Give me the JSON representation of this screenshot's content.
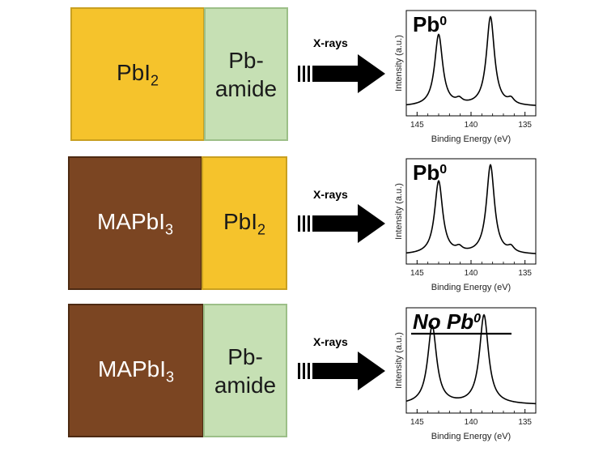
{
  "colors": {
    "pbi2_fill": "#f5c32c",
    "pbi2_border": "#c9a020",
    "amide_fill": "#c6e0b4",
    "amide_border": "#9cbf88",
    "mapbi3_fill": "#7b4522",
    "mapbi3_border": "#4d2a12"
  },
  "rows": [
    {
      "left": {
        "main": "PbI",
        "sub": "2",
        "style": "pbi2"
      },
      "right": {
        "line1": "Pb-",
        "line2": "amide",
        "style": "amide"
      },
      "arrow_label": "X-rays",
      "plot": {
        "label_main": "Pb",
        "label_sup": "0",
        "italic": false,
        "overline": false
      }
    },
    {
      "left": {
        "main": "MAPbI",
        "sub": "3",
        "style": "mapbi3"
      },
      "right": {
        "main": "PbI",
        "sub": "2",
        "style": "pbi2"
      },
      "arrow_label": "X-rays",
      "plot": {
        "label_main": "Pb",
        "label_sup": "0",
        "italic": false,
        "overline": false
      }
    },
    {
      "left": {
        "main": "MAPbI",
        "sub": "3",
        "style": "mapbi3"
      },
      "right": {
        "line1": "Pb-",
        "line2": "amide",
        "style": "amide"
      },
      "arrow_label": "X-rays",
      "plot": {
        "label_main": "No Pb",
        "label_sup": "0",
        "italic": true,
        "overline": true
      }
    }
  ],
  "chart_data": [
    {
      "type": "line",
      "xlabel": "Binding Energy (eV)",
      "ylabel": "Intensity (a.u.)",
      "xlim": [
        146,
        134
      ],
      "x_ticks": [
        "145",
        "140",
        "135"
      ],
      "peaks": [
        {
          "x": 143.0,
          "height": 0.8,
          "width": 0.45
        },
        {
          "x": 141.1,
          "height": 0.05,
          "width": 0.35
        },
        {
          "x": 138.2,
          "height": 1.0,
          "width": 0.45
        },
        {
          "x": 136.3,
          "height": 0.06,
          "width": 0.35
        }
      ],
      "baseline": 0.03
    },
    {
      "type": "line",
      "xlabel": "Binding Energy (eV)",
      "ylabel": "Intensity (a.u.)",
      "xlim": [
        146,
        134
      ],
      "x_ticks": [
        "145",
        "140",
        "135"
      ],
      "peaks": [
        {
          "x": 143.0,
          "height": 0.82,
          "width": 0.45
        },
        {
          "x": 141.1,
          "height": 0.05,
          "width": 0.35
        },
        {
          "x": 138.2,
          "height": 1.0,
          "width": 0.45
        },
        {
          "x": 136.3,
          "height": 0.06,
          "width": 0.35
        }
      ],
      "baseline": 0.03
    },
    {
      "type": "line",
      "xlabel": "Binding Energy (eV)",
      "ylabel": "Intensity (a.u.)",
      "xlim": [
        146,
        134
      ],
      "x_ticks": [
        "145",
        "140",
        "135"
      ],
      "peaks": [
        {
          "x": 143.6,
          "height": 0.88,
          "width": 0.5
        },
        {
          "x": 138.8,
          "height": 1.0,
          "width": 0.5
        }
      ],
      "baseline": 0.02
    }
  ]
}
